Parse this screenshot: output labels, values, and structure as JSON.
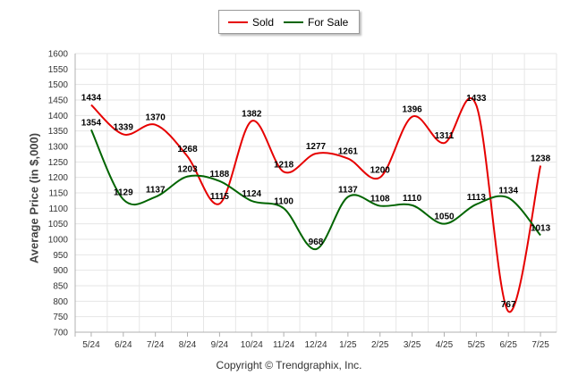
{
  "legend": {
    "sold_label": "Sold",
    "for_sale_label": "For Sale"
  },
  "credit": "Copyright © Trendgraphix, Inc.",
  "colors": {
    "sold": "#e60000",
    "for_sale": "#006400",
    "grid": "#e6e6e6"
  },
  "chart_data": {
    "type": "line",
    "title": "",
    "xlabel": "",
    "ylabel": "Average Price (in $,000)",
    "categories": [
      "5/24",
      "6/24",
      "7/24",
      "8/24",
      "9/24",
      "10/24",
      "11/24",
      "12/24",
      "1/25",
      "2/25",
      "3/25",
      "4/25",
      "5/25",
      "6/25",
      "7/25"
    ],
    "ylim": [
      700,
      1600
    ],
    "yticks": [
      700,
      750,
      800,
      850,
      900,
      950,
      1000,
      1050,
      1100,
      1150,
      1200,
      1250,
      1300,
      1350,
      1400,
      1450,
      1500,
      1550,
      1600
    ],
    "grid": true,
    "legend_position": "top-center",
    "series": [
      {
        "name": "Sold",
        "color": "#e60000",
        "values": [
          1434,
          1339,
          1370,
          1268,
          1115,
          1382,
          1218,
          1277,
          1261,
          1200,
          1396,
          1311,
          1433,
          767,
          1238
        ]
      },
      {
        "name": "For Sale",
        "color": "#006400",
        "values": [
          1354,
          1129,
          1137,
          1203,
          1188,
          1124,
          1100,
          968,
          1137,
          1108,
          1110,
          1050,
          1113,
          1134,
          1013
        ]
      }
    ]
  }
}
